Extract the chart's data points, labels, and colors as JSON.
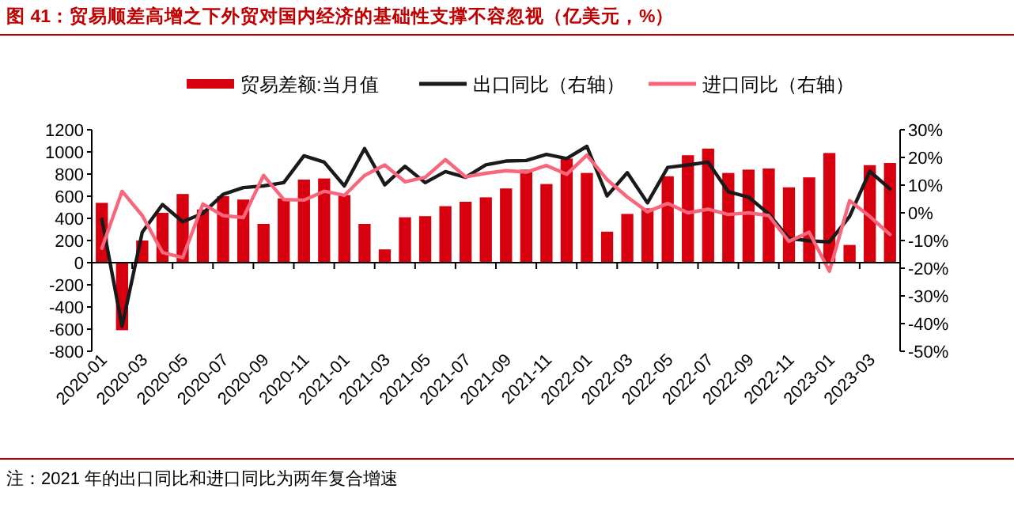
{
  "chart_data": {
    "type": "bar",
    "title": "图 41：贸易顺差高增之下外贸对国内经济的基础性支撑不容忽视（亿美元，%）",
    "categories": [
      "2020-01",
      null,
      "2020-03",
      null,
      "2020-05",
      null,
      "2020-07",
      null,
      "2020-09",
      null,
      "2020-11",
      null,
      "2021-01",
      null,
      "2021-03",
      null,
      "2021-05",
      null,
      "2021-07",
      null,
      "2021-09",
      null,
      "2021-11",
      null,
      "2022-01",
      null,
      "2022-03",
      null,
      "2022-05",
      null,
      "2022-07",
      null,
      "2022-09",
      null,
      "2022-11",
      null,
      "2023-01",
      null,
      "2023-03",
      null
    ],
    "series": [
      {
        "name": "贸易差额:当月值",
        "color": "#d7000f",
        "values": [
          540,
          -610,
          200,
          450,
          620,
          480,
          600,
          570,
          350,
          580,
          750,
          760,
          610,
          350,
          120,
          410,
          420,
          510,
          550,
          590,
          670,
          840,
          710,
          940,
          810,
          280,
          440,
          490,
          780,
          970,
          1030,
          810,
          840,
          850,
          680,
          770,
          990,
          160,
          880,
          900
        ]
      },
      {
        "name": "出口同比（右轴）",
        "type": "line",
        "axis": "y2",
        "color": "#1a1a1a",
        "values": [
          -2.3,
          -41,
          -7,
          3,
          -3.2,
          -0.2,
          6.7,
          9.1,
          9.7,
          10.9,
          20.6,
          18.3,
          9.7,
          23.2,
          10.1,
          16.8,
          10.9,
          14.9,
          12.8,
          17.3,
          18.7,
          18.9,
          21.1,
          19.6,
          24.0,
          6.1,
          14.5,
          3.6,
          16.4,
          17.3,
          18.3,
          7.6,
          5.7,
          -0.4,
          -9.3,
          -10.1,
          -10.5,
          -1.3,
          15.0,
          8.6
        ]
      },
      {
        "name": "进口同比（右轴）",
        "type": "line",
        "axis": "y2",
        "color": "#f7667a",
        "values": [
          -12.8,
          7.8,
          -1.0,
          -14.3,
          -16.2,
          3.2,
          -1.0,
          -1.7,
          13.5,
          4.8,
          4.6,
          7.8,
          6.3,
          13.5,
          17.3,
          11.2,
          12.8,
          19.2,
          13.0,
          14.3,
          15.2,
          14.7,
          17.1,
          13.9,
          20.8,
          12.0,
          5.7,
          0.4,
          3.4,
          0,
          1.3,
          -0.6,
          0,
          -1.0,
          -10.3,
          -7.0,
          -21.1,
          4.4,
          -1.3,
          -7.8
        ]
      }
    ],
    "ylim": [
      -800,
      1200
    ],
    "yticks": [
      -800,
      -600,
      -400,
      -200,
      0,
      200,
      400,
      600,
      800,
      1000,
      1200
    ],
    "y2lim": [
      -50,
      30
    ],
    "y2ticks": [
      {
        "value": -50,
        "label": "-50%"
      },
      {
        "value": -40,
        "label": "-40%"
      },
      {
        "value": -30,
        "label": "-30%"
      },
      {
        "value": -20,
        "label": "-20%"
      },
      {
        "value": -10,
        "label": "-10%"
      },
      {
        "value": 0,
        "label": "0%"
      },
      {
        "value": 10,
        "label": "10%"
      },
      {
        "value": 20,
        "label": "20%"
      },
      {
        "value": 30,
        "label": "30%"
      }
    ],
    "legend": "top",
    "annotations": [
      "注：2021 年的出口同比和进口同比为两年复合增速"
    ]
  }
}
